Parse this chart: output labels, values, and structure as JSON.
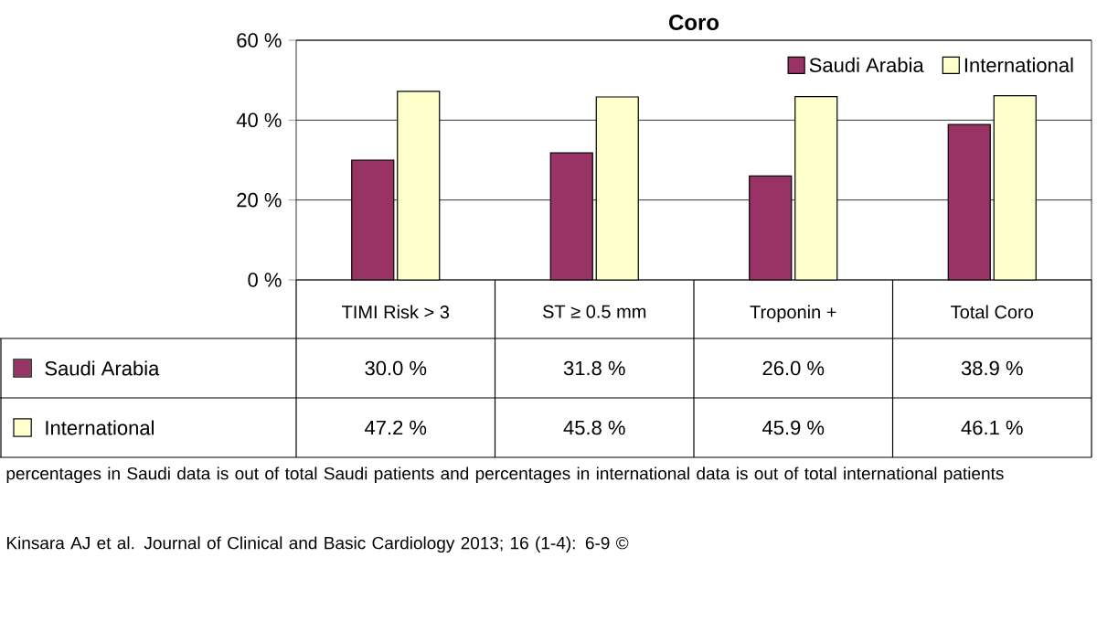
{
  "chart_data": {
    "type": "bar",
    "title": "Coro",
    "categories": [
      "TIMI Risk > 3",
      "ST ≥ 0.5 mm",
      "Troponin +",
      "Total Coro"
    ],
    "series": [
      {
        "name": "Saudi Arabia",
        "color": "#993366",
        "values": [
          30.0,
          31.8,
          26.0,
          38.9
        ],
        "value_labels": [
          "30.0 %",
          "31.8 %",
          "26.0 %",
          "38.9 %"
        ]
      },
      {
        "name": "International",
        "color": "#ffffcc",
        "values": [
          47.2,
          45.8,
          45.9,
          46.1
        ],
        "value_labels": [
          "47.2 %",
          "45.8 %",
          "45.9 %",
          "46.1 %"
        ]
      }
    ],
    "ylim": [
      0,
      60
    ],
    "yticks": [
      {
        "value": 0,
        "label": "0 %"
      },
      {
        "value": 20,
        "label": "20 %"
      },
      {
        "value": 40,
        "label": "40 %"
      },
      {
        "value": 60,
        "label": "60 %"
      }
    ],
    "grid": "y",
    "legend": "top right",
    "annotations": [
      "percentages in Saudi data is out of total Saudi patients and percentages in international data is out of total international patients",
      "Kinsara AJ et al. Journal of Clinical and Basic Cardiology 2013; 16 (1-4): 6-9 ©"
    ]
  }
}
